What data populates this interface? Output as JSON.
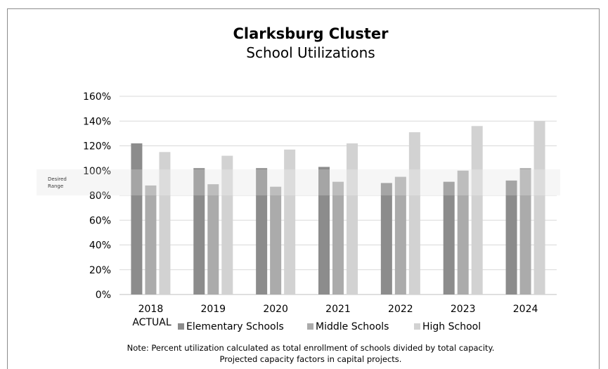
{
  "chart_data": {
    "type": "bar",
    "title": "Clarksburg Cluster",
    "subtitle": "School Utilizations",
    "categories": [
      "2018",
      "2019",
      "2020",
      "2021",
      "2022",
      "2023",
      "2024"
    ],
    "category_sublabels": [
      "ACTUAL",
      "",
      "",
      "",
      "",
      "",
      ""
    ],
    "series": [
      {
        "name": "Elementary Schools",
        "color": "#8c8c8c",
        "values": [
          122,
          102,
          102,
          103,
          90,
          91,
          92
        ]
      },
      {
        "name": "Middle Schools",
        "color": "#ababab",
        "values": [
          88,
          89,
          87,
          91,
          95,
          100,
          102
        ]
      },
      {
        "name": "High School",
        "color": "#d2d2d2",
        "values": [
          115,
          112,
          117,
          122,
          131,
          136,
          140
        ]
      }
    ],
    "ylim": [
      0,
      160
    ],
    "yticks": [
      "0%",
      "20%",
      "40%",
      "60%",
      "80%",
      "100%",
      "120%",
      "140%",
      "160%"
    ],
    "yticks_values": [
      0,
      20,
      40,
      60,
      80,
      100,
      120,
      140,
      160
    ],
    "desired_range": {
      "label_line1": "Desired",
      "label_line2": "Range",
      "min": 80,
      "max": 101
    },
    "grid": true,
    "legend_position": "bottom",
    "note_line1": "Note:  Percent utilization calculated as total enrollment of schools divided by total capacity.",
    "note_line2": "Projected capacity factors in capital projects."
  }
}
